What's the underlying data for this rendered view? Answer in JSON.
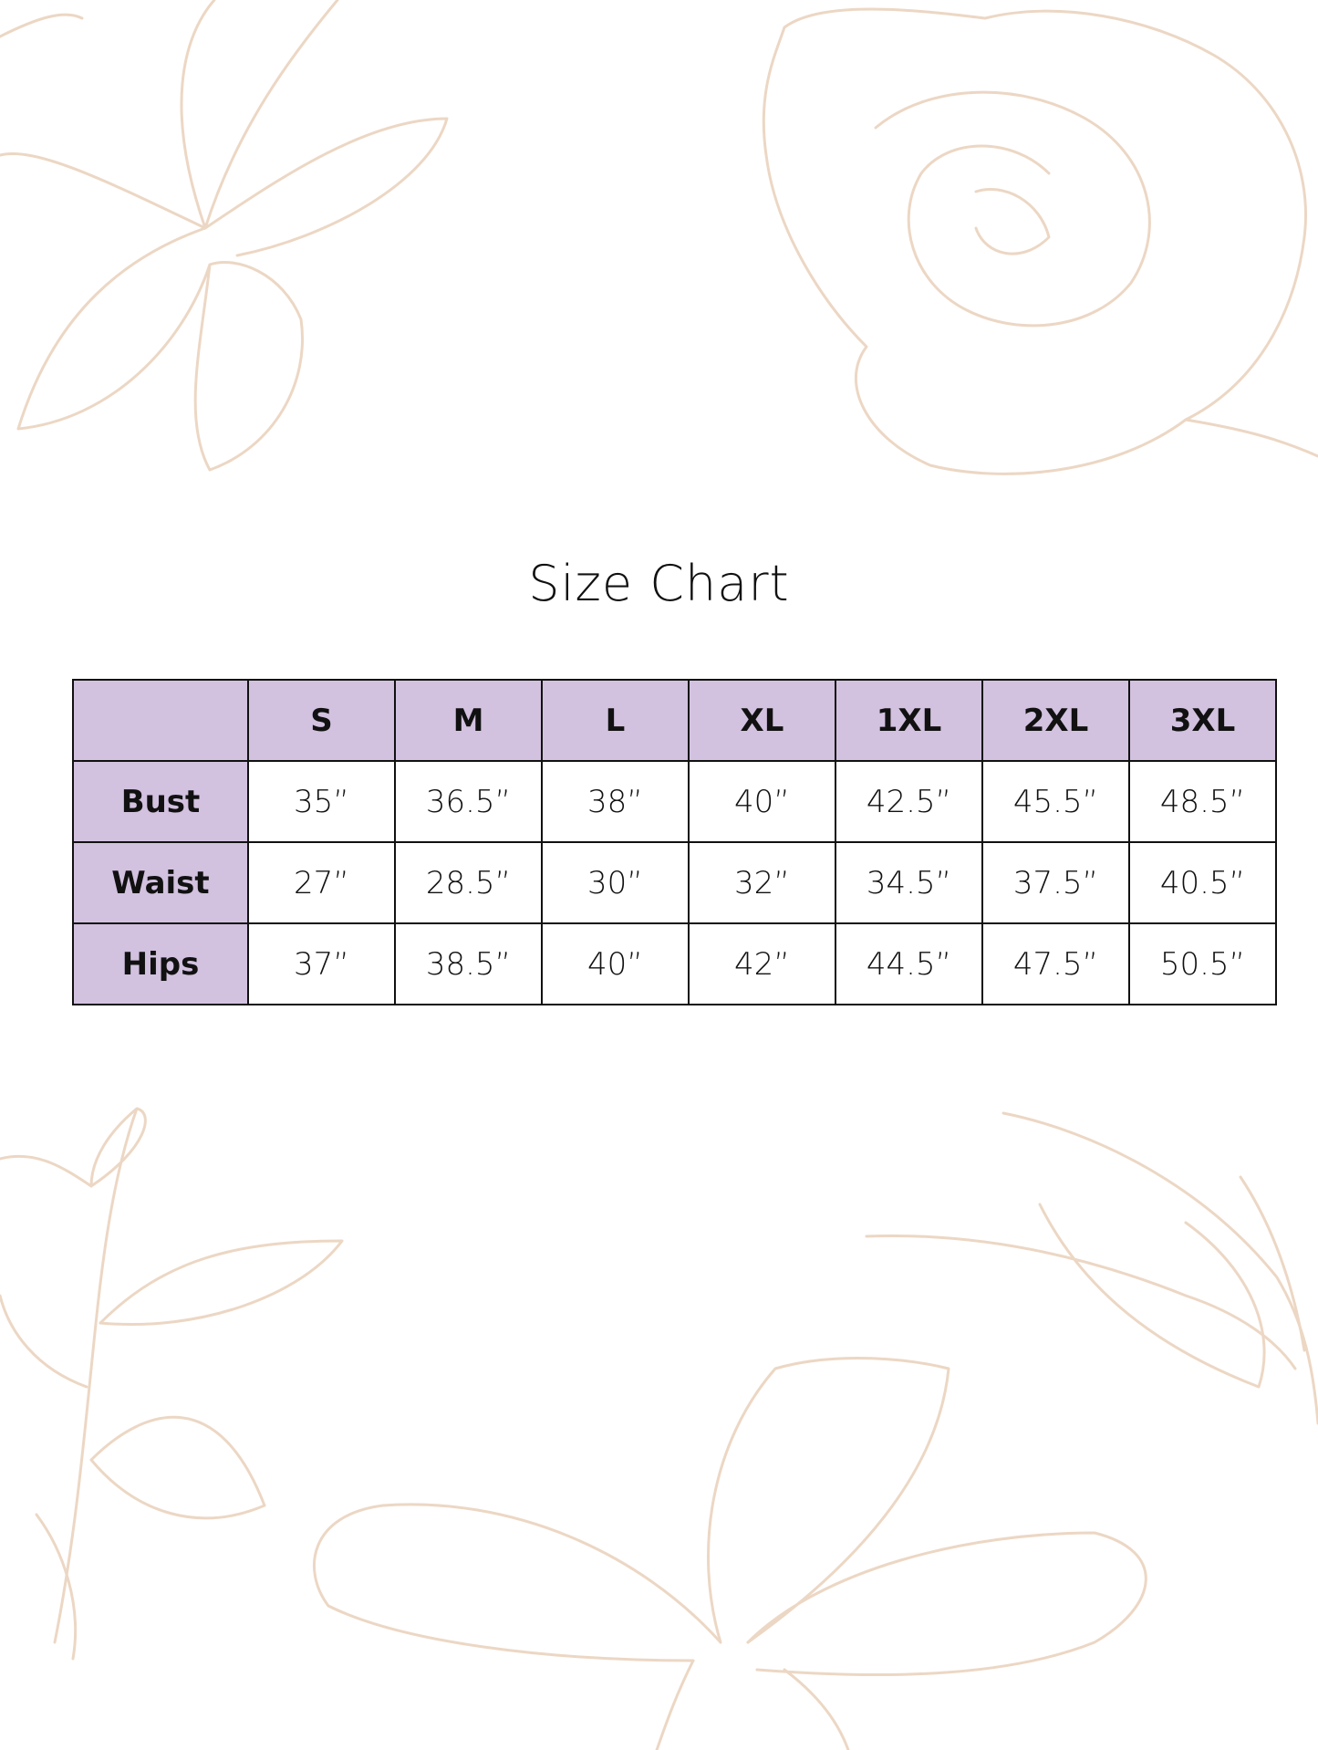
{
  "title": "Size Chart",
  "colors": {
    "header_bg": "#d2c1df",
    "border": "#111111",
    "floral_line": "#ecd7c4"
  },
  "table": {
    "columns": [
      "S",
      "M",
      "L",
      "XL",
      "1XL",
      "2XL",
      "3XL"
    ],
    "rows": [
      {
        "label": "Bust",
        "values": [
          "35”",
          "36.5”",
          "38”",
          "40”",
          "42.5”",
          "45.5”",
          "48.5”"
        ]
      },
      {
        "label": "Waist",
        "values": [
          "27”",
          "28.5”",
          "30”",
          "32”",
          "34.5”",
          "37.5”",
          "40.5”"
        ]
      },
      {
        "label": "Hips",
        "values": [
          "37”",
          "38.5”",
          "40”",
          "42”",
          "44.5”",
          "47.5”",
          "50.5”"
        ]
      }
    ]
  }
}
